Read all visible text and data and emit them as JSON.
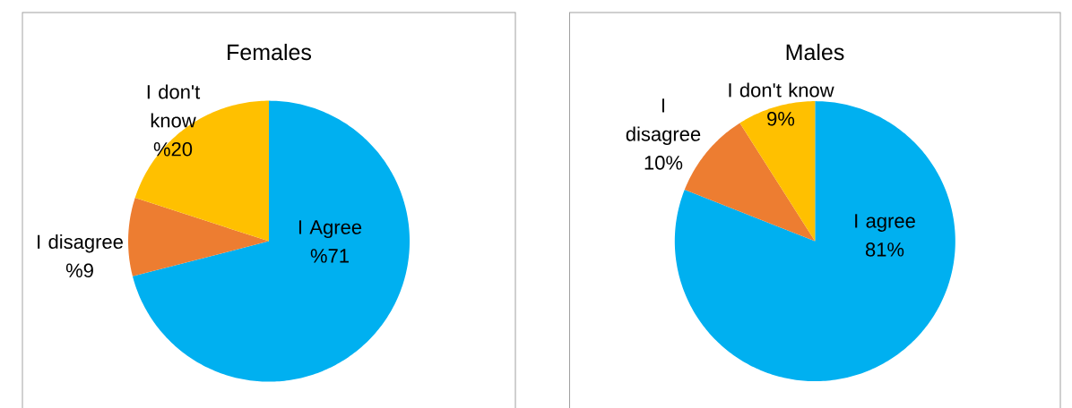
{
  "chart_data": [
    {
      "type": "pie",
      "title": "Females",
      "categories": [
        "I Agree",
        "I disagree",
        "I don't know"
      ],
      "values": [
        71,
        9,
        20
      ],
      "colors": [
        "#00b0f0",
        "#ed7d31",
        "#ffc000"
      ],
      "value_labels": [
        "%71",
        "%9",
        "%20"
      ]
    },
    {
      "type": "pie",
      "title": "Males",
      "categories": [
        "I agree",
        "I disagree",
        "I don't know"
      ],
      "values": [
        81,
        10,
        9
      ],
      "colors": [
        "#00b0f0",
        "#ed7d31",
        "#ffc000"
      ],
      "value_labels": [
        "81%",
        "10%",
        "9%"
      ]
    }
  ]
}
